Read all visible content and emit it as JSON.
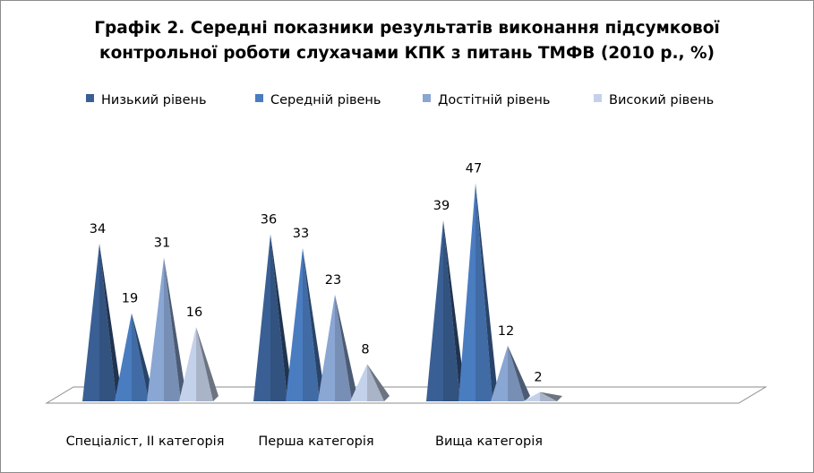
{
  "chart_title": {
    "line1": "Графік 2. Середні показники результатів виконання підсумкової",
    "line2": "контрольної роботи слухачами КПК з питань ТМФВ (2010 р., %)"
  },
  "chart_data": {
    "type": "bar",
    "style": "3d-cone",
    "categories": [
      "Спеціаліст, ІІ категорія",
      "Перша категорія",
      "Вища категорія"
    ],
    "series": [
      {
        "name": "Низький рівень",
        "values": [
          34,
          36,
          39
        ],
        "color": "#3a5f94"
      },
      {
        "name": "Середній рівень",
        "values": [
          19,
          33,
          47
        ],
        "color": "#4a7cc0"
      },
      {
        "name": "Достітній рівень",
        "values": [
          31,
          23,
          12
        ],
        "color": "#8aa6d3"
      },
      {
        "name": "Високий рівень",
        "values": [
          16,
          8,
          2
        ],
        "color": "#c4d1ea"
      }
    ],
    "ylim": [
      0,
      50
    ],
    "grid": false,
    "legend_position": "top",
    "data_labels": true
  }
}
